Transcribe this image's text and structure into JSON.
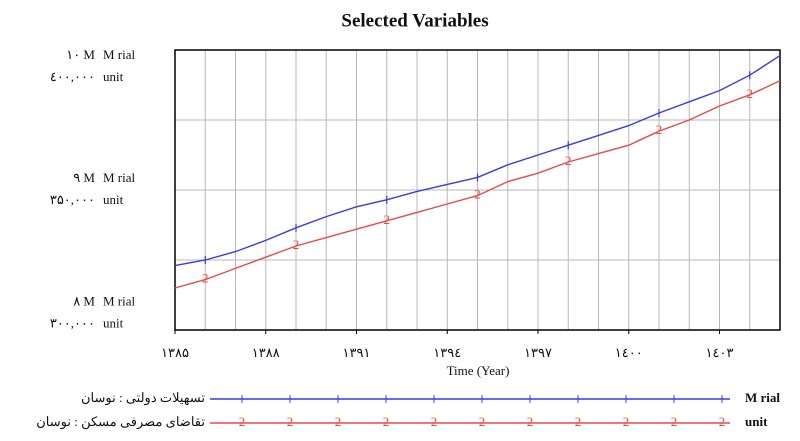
{
  "chart_data": {
    "type": "line",
    "title": "Selected Variables",
    "x_label": "Time (Year)",
    "y_unit": "M rial",
    "y2_unit": "unit",
    "x": [
      1385,
      1386,
      1387,
      1388,
      1389,
      1390,
      1391,
      1392,
      1393,
      1394,
      1395,
      1396,
      1397,
      1398,
      1399,
      1400,
      1401,
      1402,
      1403,
      1404,
      1405
    ],
    "xlim": [
      1385,
      1405
    ],
    "xticks": [
      {
        "value": 1385,
        "label": "۱۳۸۵"
      },
      {
        "value": 1388,
        "label": "۱۳۸۸"
      },
      {
        "value": 1391,
        "label": "۱۳۹۱"
      },
      {
        "value": 1394,
        "label": "۱۳۹٤"
      },
      {
        "value": 1397,
        "label": "۱۳۹۷"
      },
      {
        "value": 1400,
        "label": "۱٤۰۰"
      },
      {
        "value": 1403,
        "label": "۱٤۰۳"
      }
    ],
    "ylim": [
      8,
      10
    ],
    "yticks": [
      {
        "value": 8,
        "label": "۸ M"
      },
      {
        "value": 9,
        "label": "۹ M"
      },
      {
        "value": 10,
        "label": "۱۰ M"
      }
    ],
    "yminor": [
      8.5,
      9.5
    ],
    "y2lim": [
      300000,
      400000
    ],
    "y2ticks": [
      {
        "value": 300000,
        "label": "۳۰۰,۰۰۰"
      },
      {
        "value": 350000,
        "label": "۳۵۰,۰۰۰"
      },
      {
        "value": 400000,
        "label": "٤۰۰,۰۰۰"
      }
    ],
    "grid": true,
    "series": [
      {
        "name": "تسهیلات دولتی : نوسان",
        "color": "#3a3ae8",
        "axis": "y",
        "values": [
          8.46,
          8.5,
          8.56,
          8.64,
          8.73,
          8.81,
          8.88,
          8.93,
          8.99,
          9.04,
          9.09,
          9.18,
          9.25,
          9.32,
          9.39,
          9.46,
          9.55,
          9.63,
          9.71,
          9.82,
          9.96
        ]
      },
      {
        "name": "تقاضای مصرفی مسکن : نوسان",
        "color": "#e84a4a",
        "axis": "y2",
        "marker": "2",
        "values": [
          315000,
          318000,
          322000,
          326000,
          330000,
          333000,
          336000,
          339000,
          342000,
          345000,
          348000,
          353000,
          356000,
          360000,
          363000,
          366000,
          371000,
          375000,
          380000,
          384000,
          389000
        ]
      }
    ]
  }
}
